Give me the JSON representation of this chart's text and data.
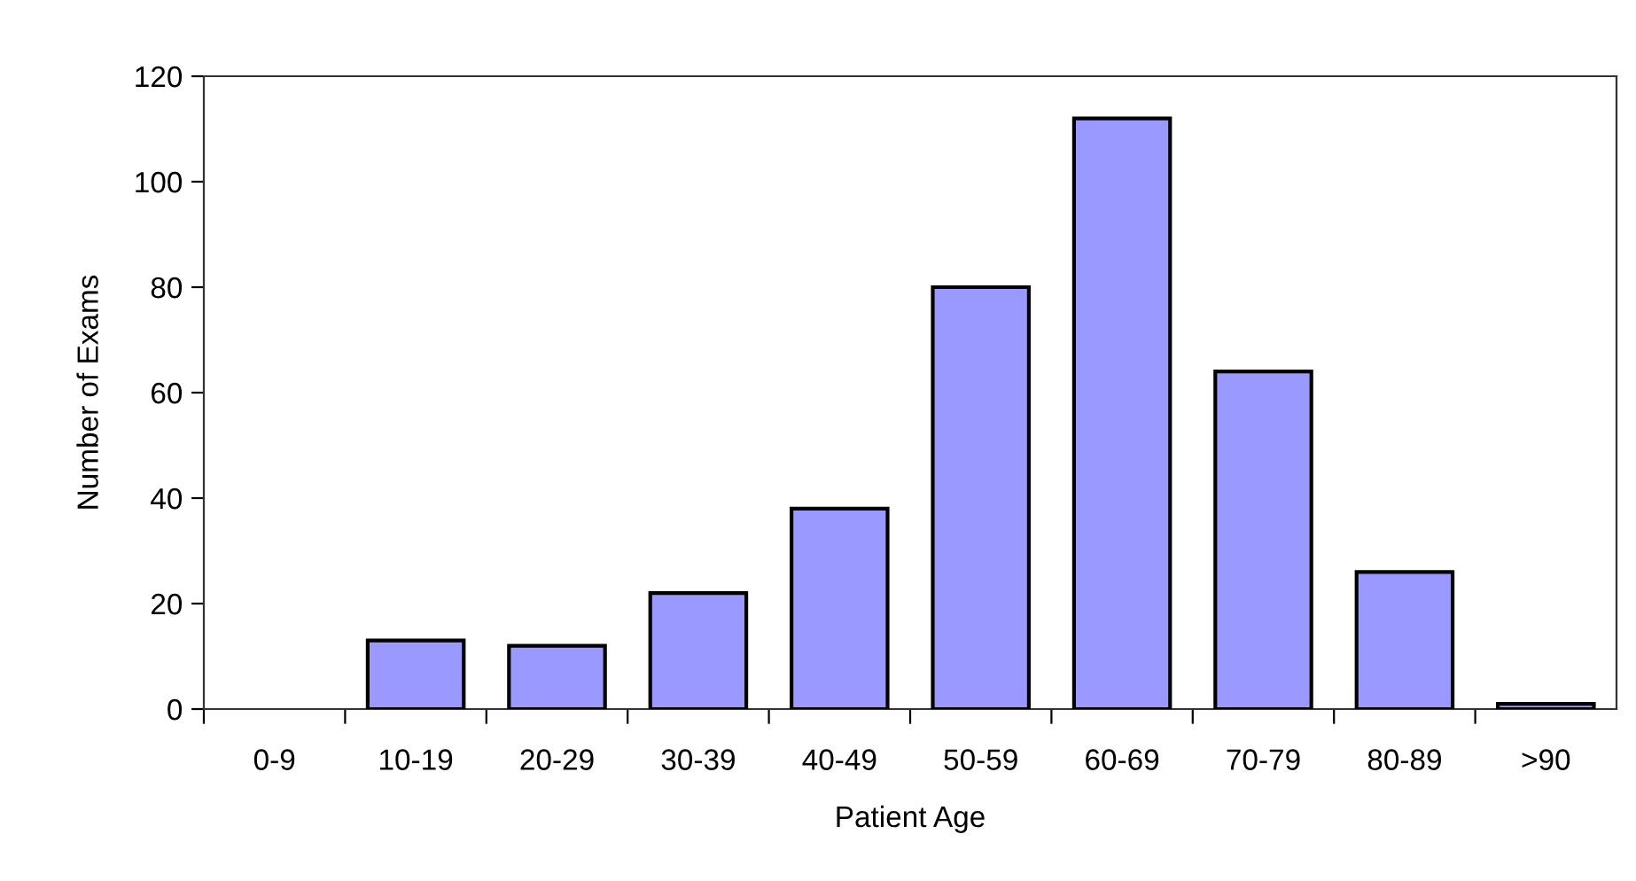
{
  "chart_data": {
    "type": "bar",
    "xlabel": "Patient Age",
    "ylabel": "Number of Exams",
    "categories": [
      "0-9",
      "10-19",
      "20-29",
      "30-39",
      "40-49",
      "50-59",
      "60-69",
      "70-79",
      "80-89",
      ">90"
    ],
    "values": [
      0,
      13,
      12,
      22,
      38,
      80,
      112,
      64,
      26,
      1
    ],
    "color": "#9999ff",
    "ylim": [
      0,
      120
    ],
    "yticks": [
      0,
      20,
      40,
      60,
      80,
      100,
      120
    ],
    "grid": false,
    "legend": false
  }
}
